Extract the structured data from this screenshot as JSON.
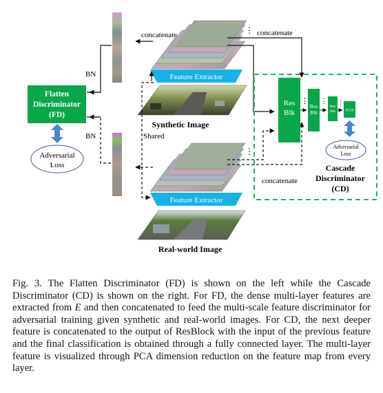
{
  "figure": {
    "fd_box": {
      "line1": "Flatten",
      "line2": "Discriminator",
      "line3": "(FD)"
    },
    "fd_loss": {
      "line1": "Adversarial",
      "line2": "Loss"
    },
    "cd_loss": {
      "line1": "Adversarial",
      "line2": "Loss"
    },
    "bn_top": "BN",
    "bn_bottom": "BN",
    "shared": "Shared",
    "concat_top_left": "concatenate",
    "concat_top_right": "concatenate",
    "concat_bottom": "concatenate",
    "feature_extractor_top": "Feature Extractor",
    "feature_extractor_bottom": "Feature Extractor",
    "synthetic_image": "Synthetic Image",
    "realworld_image": "Real-world Image",
    "resblk_large": {
      "line1": "Res",
      "line2": "Blk"
    },
    "resblk_medium": {
      "line1": "Res",
      "line2": "Blk"
    },
    "resblk_small": {
      "line1": "Res",
      "line2": "Blk"
    },
    "fcn": "FCN",
    "cd_label": {
      "line1": "Cascade",
      "line2": "Discriminator",
      "line3": "(CD)"
    },
    "colors": {
      "green": "#0aa64a",
      "dashed_border": "#1fb35a",
      "cyan": "#17b3e6",
      "loss_border": "#3a5a9a",
      "arrow_blue": "#4a86c8"
    }
  },
  "caption": {
    "prefix": "Fig. 3.   The Flatten Discriminator (FD) is shown on the left while the Cascade Discriminator (CD) is shown on the right. For FD, the dense multi-layer features are extracted from ",
    "symbol": "E",
    "suffix": " and then concatenated to feed the multi-scale feature discriminator for adversarial training given synthetic and real-world images. For CD, the next deeper feature is concatenated to the output of ResBlock with the input of the previous feature and the final classification is obtained through a fully connected layer. The multi-layer feature is visualized through PCA dimension reduction on the feature map from every layer."
  }
}
